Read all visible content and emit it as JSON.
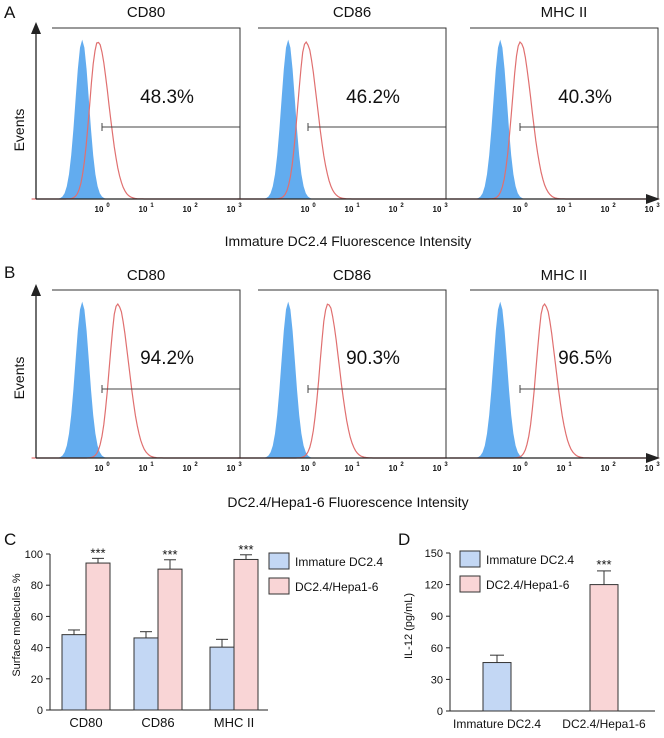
{
  "chart_data": [
    {
      "panel": "A",
      "type": "histogram-overlay",
      "ylabel": "Events",
      "xlabel": "Immature DC2.4 Fluorescence Intensity",
      "x_ticks": [
        "10",
        "10",
        "10",
        "10"
      ],
      "x_tick_exponents": [
        "0",
        "1",
        "2",
        "3"
      ],
      "subplots": [
        {
          "title": "CD80",
          "percent": "48.3%",
          "shaded_peak_log": -0.45,
          "line_peak_log": -0.1
        },
        {
          "title": "CD86",
          "percent": "46.2%",
          "shaded_peak_log": -0.45,
          "line_peak_log": -0.05
        },
        {
          "title": "MHC II",
          "percent": "40.3%",
          "shaded_peak_log": -0.45,
          "line_peak_log": 0.0
        }
      ]
    },
    {
      "panel": "B",
      "type": "histogram-overlay",
      "ylabel": "Events",
      "xlabel": "DC2.4/Hepa1-6 Fluorescence Intensity",
      "x_ticks": [
        "10",
        "10",
        "10",
        "10"
      ],
      "x_tick_exponents": [
        "0",
        "1",
        "2",
        "3"
      ],
      "subplots": [
        {
          "title": "CD80",
          "percent": "94.2%",
          "shaded_peak_log": -0.45,
          "line_peak_log": 0.35
        },
        {
          "title": "CD86",
          "percent": "90.3%",
          "shaded_peak_log": -0.45,
          "line_peak_log": 0.45
        },
        {
          "title": "MHC II",
          "percent": "96.5%",
          "shaded_peak_log": -0.45,
          "line_peak_log": 0.55
        }
      ]
    },
    {
      "panel": "C",
      "type": "bar",
      "ylabel": "Surface molecules %",
      "categories": [
        "CD80",
        "CD86",
        "MHC II"
      ],
      "ylim": [
        0,
        100
      ],
      "yticks": [
        "0",
        "20",
        "40",
        "60",
        "80",
        "100"
      ],
      "series": [
        {
          "name": "Immature DC2.4",
          "values": [
            48.3,
            46.2,
            40.3
          ],
          "errors": [
            3,
            4,
            5
          ],
          "color": "#c3d7f4"
        },
        {
          "name": "DC2.4/Hepa1-6",
          "values": [
            94.2,
            90.3,
            96.5
          ],
          "errors": [
            3,
            6,
            3
          ],
          "color": "#f9d5d6"
        }
      ],
      "annotations": [
        "***",
        "***",
        "***"
      ]
    },
    {
      "panel": "D",
      "type": "bar",
      "ylabel": "IL-12 (pg/mL)",
      "categories": [
        "Immature DC2.4",
        "DC2.4/Hepa1-6"
      ],
      "ylim": [
        0,
        150
      ],
      "yticks": [
        "0",
        "30",
        "60",
        "90",
        "120",
        "150"
      ],
      "values": [
        46,
        120
      ],
      "errors": [
        7,
        13
      ],
      "colors": [
        "#c3d7f4",
        "#f9d5d6"
      ],
      "legend": [
        "Immature DC2.4",
        "DC2.4/Hepa1-6"
      ],
      "annotation": "***"
    }
  ],
  "colors": {
    "shaded": "#5aa8ee",
    "line": "#e07070",
    "blue_bar": "#c3d7f4",
    "pink_bar": "#f9d5d6"
  }
}
